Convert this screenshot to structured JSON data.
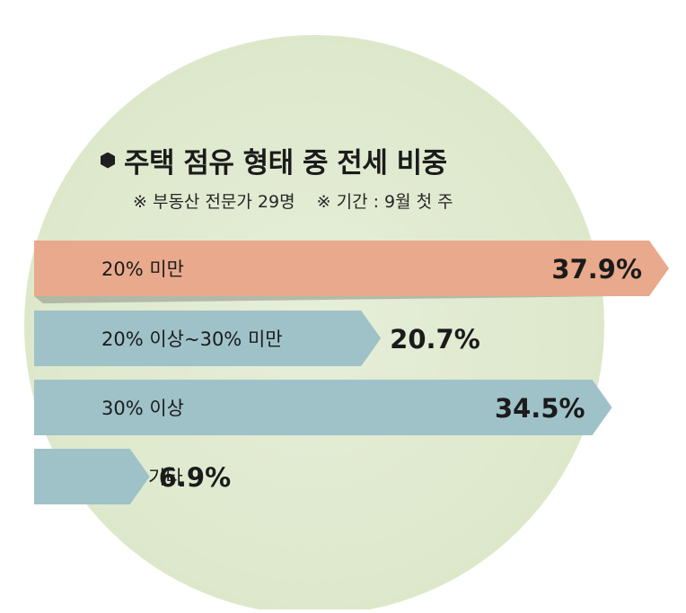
{
  "chart_data": {
    "type": "bar",
    "title": "주택 점유 형태 중 전세 비중",
    "notes": [
      "※ 부동산 전문가 29명",
      "※ 기간 : 9월 첫 주"
    ],
    "categories": [
      "20% 미만",
      "20% 이상~30% 미만",
      "30% 이상",
      "기타"
    ],
    "values": [
      37.9,
      20.7,
      34.5,
      6.9
    ],
    "value_labels": [
      "37.9%",
      "20.7%",
      "34.5%",
      "6.9%"
    ],
    "xlim": [
      0,
      37.9
    ],
    "grid": false,
    "legend": "none"
  },
  "colors": {
    "circle_bg": "#e3ecd5",
    "highlight_bar": "#e9a98c",
    "normal_bar": "#9fc2c9",
    "text": "#1b1b1b"
  },
  "icons": {
    "title_bullet": "hexagon-bullet-icon"
  }
}
